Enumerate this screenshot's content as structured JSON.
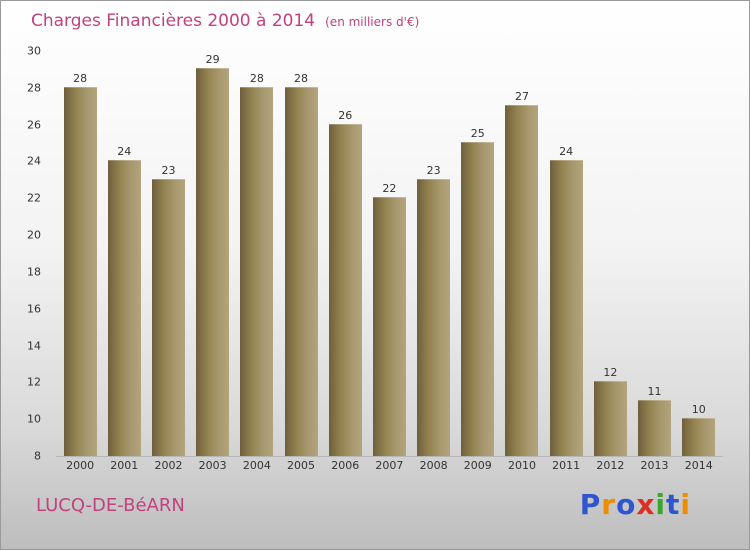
{
  "title": "Charges Financières 2000 à 2014",
  "subtitle": "(en milliers d'€)",
  "footer": {
    "place": "LUCQ-DE-BéARN"
  },
  "logo": {
    "text": "Proxiti",
    "letters": [
      {
        "ch": "P",
        "color": "#2f55cf"
      },
      {
        "ch": "r",
        "color": "#f08c00"
      },
      {
        "ch": "o",
        "color": "#2f55cf"
      },
      {
        "ch": "x",
        "color": "#d93025"
      },
      {
        "ch": "i",
        "color": "#38a826"
      },
      {
        "ch": "t",
        "color": "#2f55cf"
      },
      {
        "ch": "i",
        "color": "#f08c00"
      }
    ]
  },
  "colors": {
    "title_text": "#c2417f",
    "bar_dark": "#6e5f3d",
    "bar_light": "#b3a47c",
    "axis_text": "#333333"
  },
  "chart_data": {
    "type": "bar",
    "title": "Charges Financières 2000 à 2014",
    "subtitle": "(en milliers d'€)",
    "categories": [
      "2000",
      "2001",
      "2002",
      "2003",
      "2004",
      "2005",
      "2006",
      "2007",
      "2008",
      "2009",
      "2010",
      "2011",
      "2012",
      "2013",
      "2014"
    ],
    "values": [
      28,
      24,
      23,
      29,
      28,
      28,
      26,
      22,
      23,
      25,
      27,
      24,
      12,
      11,
      10
    ],
    "xlabel": "",
    "ylabel": "",
    "ylim": [
      8,
      30
    ],
    "yticks": [
      30,
      28,
      26,
      24,
      22,
      20,
      18,
      16,
      14,
      12,
      10,
      8
    ],
    "grid": false,
    "legend": "none",
    "data_labels": true
  }
}
